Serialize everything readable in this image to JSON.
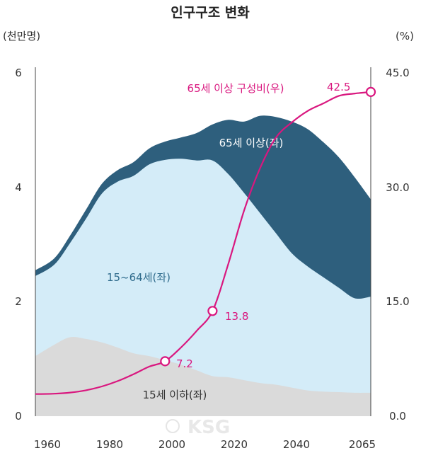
{
  "title": "인구구조 변화",
  "colors": {
    "age65": "#2e5f7d",
    "age15_64": "#d4ecf8",
    "age0_14": "#dadada",
    "ratio": "#d9177f"
  },
  "chart_data": {
    "type": "area",
    "title": "인구구조 변화",
    "y_left": {
      "unit": "(천만명)",
      "ylim": [
        0,
        6
      ],
      "ticks": [
        "0",
        "2",
        "4",
        "6"
      ]
    },
    "y_right": {
      "unit": "(%)",
      "ylim": [
        0,
        45
      ],
      "ticks": [
        "0.0",
        "15.0",
        "30.0",
        "45.0"
      ]
    },
    "x_ticks": [
      "1960",
      "1980",
      "2000",
      "2020",
      "2040",
      "2065"
    ],
    "xlim": [
      1959,
      2065
    ],
    "stacked_series": [
      {
        "name": "15세 이하(좌)",
        "x": [
          1959,
          1965,
          1970,
          1975,
          1980,
          1985,
          1990,
          1995,
          2000,
          2005,
          2010,
          2015,
          2020,
          2025,
          2030,
          2035,
          2040,
          2045,
          2050,
          2055,
          2060,
          2065
        ],
        "values": [
          1.05,
          1.25,
          1.38,
          1.35,
          1.29,
          1.2,
          1.1,
          1.05,
          0.98,
          0.9,
          0.8,
          0.7,
          0.68,
          0.63,
          0.58,
          0.55,
          0.5,
          0.45,
          0.43,
          0.42,
          0.41,
          0.41
        ]
      },
      {
        "name": "15~64세(좌)",
        "x": [
          1959,
          1965,
          1970,
          1975,
          1980,
          1985,
          1990,
          1995,
          2000,
          2005,
          2010,
          2015,
          2020,
          2025,
          2030,
          2035,
          2040,
          2045,
          2050,
          2055,
          2060,
          2065
        ],
        "values": [
          1.4,
          1.4,
          1.65,
          2.1,
          2.6,
          2.9,
          3.1,
          3.35,
          3.5,
          3.6,
          3.67,
          3.77,
          3.55,
          3.27,
          2.97,
          2.65,
          2.35,
          2.17,
          2.0,
          1.82,
          1.65,
          1.68
        ]
      },
      {
        "name": "65세 이상(좌)",
        "x": [
          1959,
          1965,
          1970,
          1975,
          1980,
          1985,
          1990,
          1995,
          2000,
          2005,
          2010,
          2015,
          2020,
          2025,
          2030,
          2035,
          2040,
          2045,
          2050,
          2055,
          2060,
          2065
        ],
        "values": [
          0.1,
          0.11,
          0.13,
          0.16,
          0.17,
          0.2,
          0.24,
          0.28,
          0.32,
          0.37,
          0.48,
          0.63,
          0.95,
          1.25,
          1.7,
          2.03,
          2.3,
          2.4,
          2.36,
          2.28,
          2.11,
          1.7
        ]
      }
    ],
    "ratio_series": {
      "name": "65세 이상 구성비(우)",
      "axis": "right",
      "x": [
        1959,
        1965,
        1970,
        1975,
        1980,
        1985,
        1990,
        1995,
        2000,
        2005,
        2010,
        2015,
        2020,
        2025,
        2030,
        2035,
        2040,
        2045,
        2050,
        2055,
        2060,
        2065
      ],
      "values": [
        2.9,
        2.95,
        3.1,
        3.4,
        3.9,
        4.6,
        5.5,
        6.5,
        7.2,
        9.0,
        11.2,
        13.8,
        20.0,
        27.0,
        32.5,
        36.5,
        38.5,
        40.0,
        41.0,
        42.0,
        42.3,
        42.5
      ],
      "labelled_points": [
        {
          "x": 2000,
          "y": 7.2,
          "label": "7.2"
        },
        {
          "x": 2015,
          "y": 13.8,
          "label": "13.8"
        },
        {
          "x": 2065,
          "y": 42.5,
          "label": "42.5"
        }
      ]
    },
    "annotations": [
      "65세 이상 구성비(우)",
      "65세 이상(좌)",
      "15~64세(좌)",
      "15세 이하(좌)"
    ],
    "grid": false,
    "watermark": "KSG"
  }
}
